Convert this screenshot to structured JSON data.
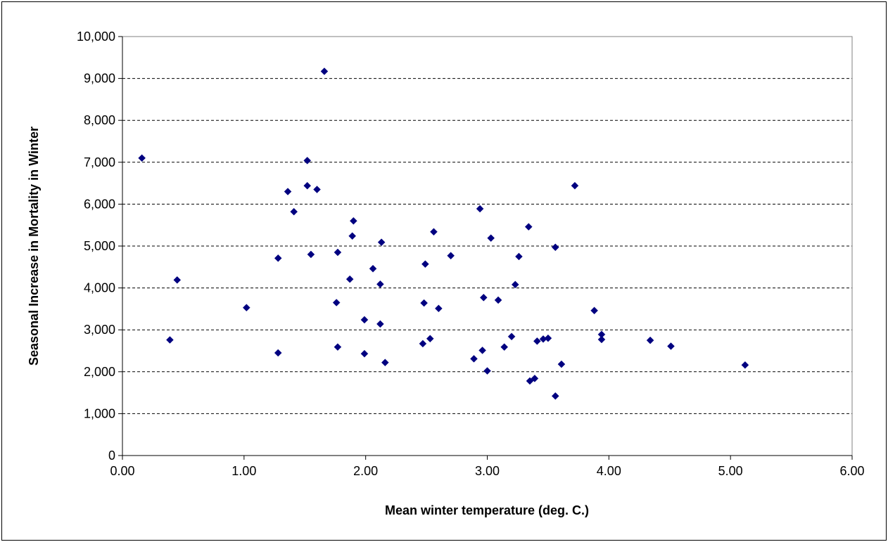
{
  "chart_data": {
    "type": "scatter",
    "title": "",
    "xlabel": "Mean winter temperature (deg. C.)",
    "ylabel": "Seasonal Increase in Mortality in Winter",
    "xlim": [
      0,
      6
    ],
    "ylim": [
      0,
      10000
    ],
    "x_ticks": [
      0,
      1,
      2,
      3,
      4,
      5,
      6
    ],
    "x_tick_labels": [
      "0.00",
      "1.00",
      "2.00",
      "3.00",
      "4.00",
      "5.00",
      "6.00"
    ],
    "y_ticks": [
      0,
      1000,
      2000,
      3000,
      4000,
      5000,
      6000,
      7000,
      8000,
      9000,
      10000
    ],
    "y_tick_labels": [
      "0",
      "1,000",
      "2,000",
      "3,000",
      "4,000",
      "5,000",
      "6,000",
      "7,000",
      "8,000",
      "9,000",
      "10,000"
    ],
    "grid": "horizontal dashed",
    "legend": "none",
    "marker": "diamond",
    "marker_color": "#000080",
    "points": [
      [
        0.16,
        7100
      ],
      [
        0.39,
        2760
      ],
      [
        0.45,
        4190
      ],
      [
        1.02,
        3530
      ],
      [
        1.28,
        4710
      ],
      [
        1.28,
        2450
      ],
      [
        1.36,
        6300
      ],
      [
        1.41,
        5820
      ],
      [
        1.52,
        7040
      ],
      [
        1.52,
        6440
      ],
      [
        1.55,
        4800
      ],
      [
        1.6,
        6350
      ],
      [
        1.66,
        9170
      ],
      [
        1.76,
        3650
      ],
      [
        1.77,
        4850
      ],
      [
        1.77,
        2590
      ],
      [
        1.87,
        4210
      ],
      [
        1.89,
        5240
      ],
      [
        1.9,
        5600
      ],
      [
        1.99,
        3240
      ],
      [
        1.99,
        2430
      ],
      [
        2.06,
        4460
      ],
      [
        2.12,
        4090
      ],
      [
        2.12,
        3140
      ],
      [
        2.13,
        5090
      ],
      [
        2.16,
        2220
      ],
      [
        2.47,
        2670
      ],
      [
        2.48,
        3640
      ],
      [
        2.49,
        4570
      ],
      [
        2.53,
        2790
      ],
      [
        2.56,
        5340
      ],
      [
        2.6,
        3510
      ],
      [
        2.7,
        4770
      ],
      [
        2.89,
        2310
      ],
      [
        2.94,
        5890
      ],
      [
        2.96,
        2510
      ],
      [
        2.97,
        3770
      ],
      [
        3.0,
        2020
      ],
      [
        3.03,
        5190
      ],
      [
        3.09,
        3710
      ],
      [
        3.14,
        2590
      ],
      [
        3.2,
        2840
      ],
      [
        3.23,
        4080
      ],
      [
        3.26,
        4750
      ],
      [
        3.34,
        5460
      ],
      [
        3.35,
        1780
      ],
      [
        3.39,
        1840
      ],
      [
        3.41,
        2730
      ],
      [
        3.46,
        2780
      ],
      [
        3.5,
        2800
      ],
      [
        3.56,
        4970
      ],
      [
        3.56,
        1420
      ],
      [
        3.61,
        2180
      ],
      [
        3.72,
        6440
      ],
      [
        3.88,
        3460
      ],
      [
        3.94,
        2890
      ],
      [
        3.94,
        2770
      ],
      [
        4.34,
        2750
      ],
      [
        4.51,
        2610
      ],
      [
        5.12,
        2160
      ]
    ]
  }
}
